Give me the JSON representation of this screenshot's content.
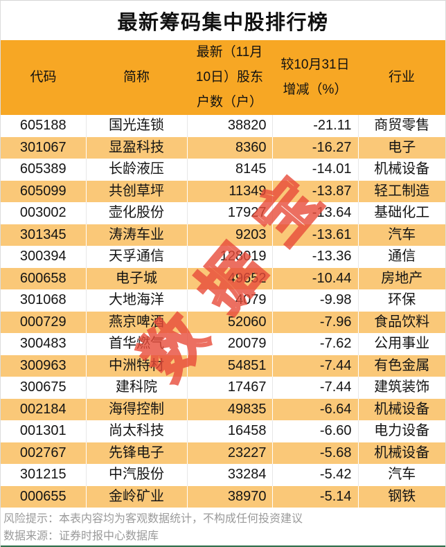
{
  "title": "最新筹码集中股排行榜",
  "watermark": "数据宝",
  "chart_data": {
    "type": "table",
    "title": "最新筹码集中股排行榜",
    "columns": [
      "代码",
      "简称",
      "最新（11月10日）股东户数（户）",
      "较10月31日增减（%）",
      "行业"
    ],
    "rows": [
      [
        "605188",
        "国光连锁",
        38820,
        "-21.11",
        "商贸零售"
      ],
      [
        "301067",
        "显盈科技",
        8360,
        "-16.27",
        "电子"
      ],
      [
        "605389",
        "长龄液压",
        8145,
        "-14.01",
        "机械设备"
      ],
      [
        "605099",
        "共创草坪",
        11349,
        "-13.87",
        "轻工制造"
      ],
      [
        "003002",
        "壶化股份",
        17927,
        "-13.64",
        "基础化工"
      ],
      [
        "301345",
        "涛涛车业",
        9203,
        "-13.61",
        "汽车"
      ],
      [
        "300394",
        "天孚通信",
        128019,
        "-13.36",
        "通信"
      ],
      [
        "600658",
        "电子城",
        49652,
        "-10.44",
        "房地产"
      ],
      [
        "301068",
        "大地海洋",
        4079,
        "-9.98",
        "环保"
      ],
      [
        "000729",
        "燕京啤酒",
        52060,
        "-7.96",
        "食品饮料"
      ],
      [
        "300483",
        "首华燃气",
        20079,
        "-7.62",
        "公用事业"
      ],
      [
        "300963",
        "中洲特材",
        54851,
        "-7.44",
        "有色金属"
      ],
      [
        "300675",
        "建科院",
        17467,
        "-7.44",
        "建筑装饰"
      ],
      [
        "002184",
        "海得控制",
        49835,
        "-6.64",
        "机械设备"
      ],
      [
        "001301",
        "尚太科技",
        16458,
        "-6.60",
        "电力设备"
      ],
      [
        "002767",
        "先锋电子",
        23227,
        "-5.68",
        "机械设备"
      ],
      [
        "301215",
        "中汽股份",
        33284,
        "-5.42",
        "汽车"
      ],
      [
        "000655",
        "金岭矿业",
        38970,
        "-5.14",
        "钢铁"
      ]
    ]
  },
  "footer": {
    "risk_note": "风险提示：本表内容均为客观数据统计，不构成任何投资建议",
    "data_source": "数据来源：证券时报中心数据库"
  },
  "colors": {
    "header_orange": "#F7A724",
    "row_orange": "#FAC878",
    "watermark_red": "#E84C3A",
    "bottom_bar_green": "#35714E",
    "footer_text_gray": "#9A9A9A"
  }
}
